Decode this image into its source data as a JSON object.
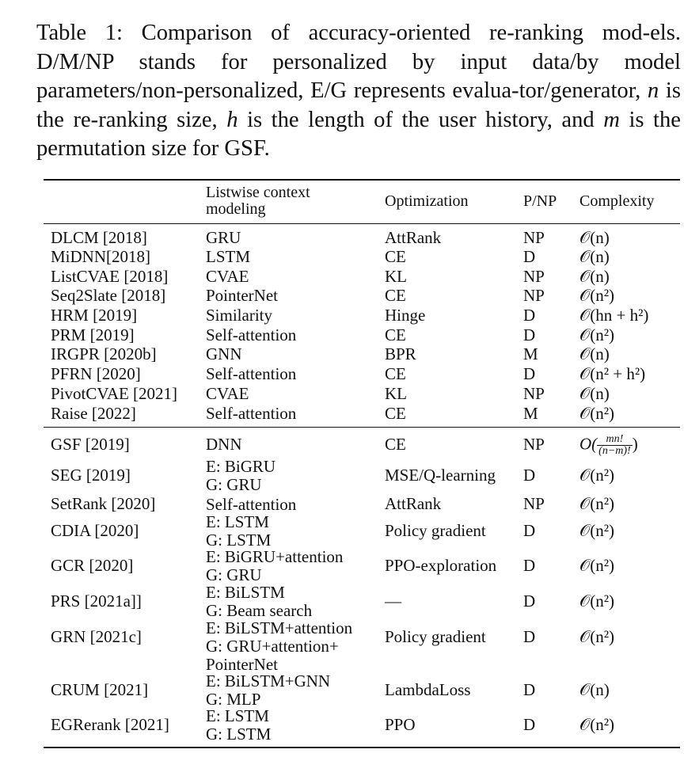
{
  "caption": {
    "label": "Table 1:",
    "text_a": "Comparison of accuracy-oriented re-ranking mod-els. D/M/NP stands for personalized by input data/by model parameters/non-personalized, E/G represents evalua-tor/generator,",
    "var_n": "n",
    "text_b": "is the re-ranking size,",
    "var_h": "h",
    "text_c": "is the length of the user history, and",
    "var_m": "m",
    "text_d": "is the permutation size for GSF."
  },
  "header": {
    "model": "",
    "context_line1": "Listwise context",
    "context_line2": "modeling",
    "optimization": "Optimization",
    "pnp": "P/NP",
    "complexity": "Complexity"
  },
  "group1": [
    {
      "model": "DLCM [2018]",
      "context": [
        "GRU"
      ],
      "optimization": "AttRank",
      "pnp": "NP",
      "complexity": "𝒪(n)"
    },
    {
      "model": "MiDNN[2018]",
      "context": [
        "LSTM"
      ],
      "optimization": "CE",
      "pnp": "D",
      "complexity": "𝒪(n)"
    },
    {
      "model": "ListCVAE [2018]",
      "context": [
        "CVAE"
      ],
      "optimization": "KL",
      "pnp": "NP",
      "complexity": "𝒪(n)"
    },
    {
      "model": "Seq2Slate [2018]",
      "context": [
        "PointerNet"
      ],
      "optimization": "CE",
      "pnp": "NP",
      "complexity": "𝒪(n²)"
    },
    {
      "model": "HRM [2019]",
      "context": [
        "Similarity"
      ],
      "optimization": "Hinge",
      "pnp": "D",
      "complexity": "𝒪(hn + h²)"
    },
    {
      "model": "PRM [2019]",
      "context": [
        "Self-attention"
      ],
      "optimization": "CE",
      "pnp": "D",
      "complexity": "𝒪(n²)"
    },
    {
      "model": "IRGPR [2020b]",
      "context": [
        "GNN"
      ],
      "optimization": "BPR",
      "pnp": "M",
      "complexity": "𝒪(n)"
    },
    {
      "model": "PFRN [2020]",
      "context": [
        "Self-attention"
      ],
      "optimization": "CE",
      "pnp": "D",
      "complexity": "𝒪(n² + h²)"
    },
    {
      "model": "PivotCVAE [2021]",
      "context": [
        "CVAE"
      ],
      "optimization": "KL",
      "pnp": "NP",
      "complexity": "𝒪(n)"
    },
    {
      "model": "Raise [2022]",
      "context": [
        "Self-attention"
      ],
      "optimization": "CE",
      "pnp": "M",
      "complexity": "𝒪(n²)"
    }
  ],
  "gsf": {
    "model": "GSF [2019]",
    "context": "DNN",
    "optimization": "CE",
    "pnp": "NP",
    "complexity_prefix": "O(",
    "complexity_num": "mn!",
    "complexity_den": "(n−m)!",
    "complexity_suffix": ")"
  },
  "group2": [
    {
      "model": "SEG [2019]",
      "context": [
        "E: BiGRU",
        "G: GRU"
      ],
      "optimization": "MSE/Q-learning",
      "pnp": "D",
      "complexity": "𝒪(n²)"
    },
    {
      "model": "SetRank [2020]",
      "context": [
        "Self-attention"
      ],
      "optimization": "AttRank",
      "pnp": "NP",
      "complexity": "𝒪(n²)"
    },
    {
      "model": "CDIA [2020]",
      "context": [
        "E: LSTM",
        "G: LSTM"
      ],
      "optimization": "Policy gradient",
      "pnp": "D",
      "complexity": "𝒪(n²)"
    },
    {
      "model": "GCR [2020]",
      "context": [
        "E: BiGRU+attention",
        "G: GRU"
      ],
      "optimization": "PPO-exploration",
      "pnp": "D",
      "complexity": "𝒪(n²)"
    },
    {
      "model": "PRS [2021a]]",
      "context": [
        "E: BiLSTM",
        "G: Beam search"
      ],
      "optimization": "—",
      "pnp": "D",
      "complexity": "𝒪(n²)"
    },
    {
      "model": "GRN [2021c]",
      "context": [
        "E: BiLSTM+attention",
        "G: GRU+attention+",
        "PointerNet"
      ],
      "optimization": "Policy gradient",
      "pnp": "D",
      "complexity": "𝒪(n²)"
    },
    {
      "model": "CRUM [2021]",
      "context": [
        "E: BiLSTM+GNN",
        "G: MLP"
      ],
      "optimization": "LambdaLoss",
      "pnp": "D",
      "complexity": "𝒪(n)"
    },
    {
      "model": "EGRerank [2021]",
      "context": [
        "E: LSTM",
        "G: LSTM"
      ],
      "optimization": "PPO",
      "pnp": "D",
      "complexity": "𝒪(n²)"
    }
  ]
}
